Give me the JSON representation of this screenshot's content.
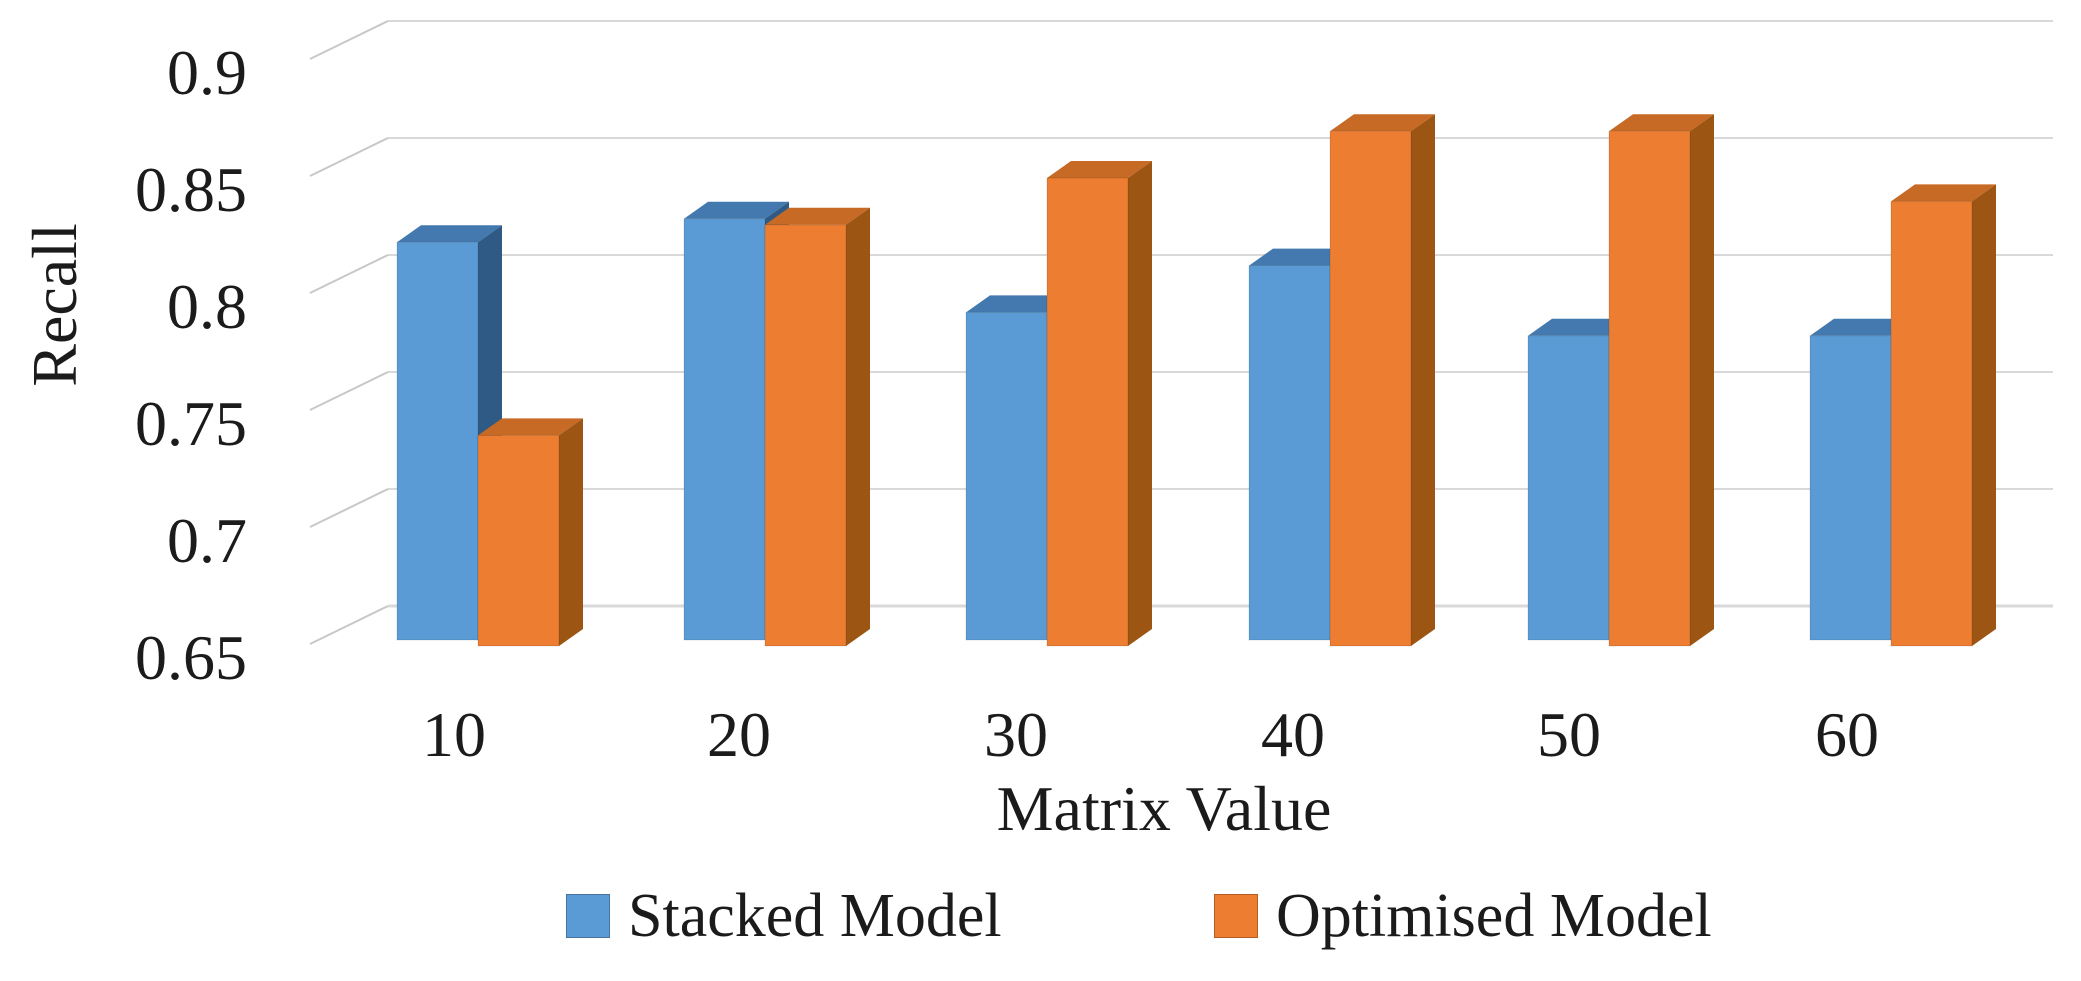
{
  "chart_data": {
    "type": "bar",
    "style": "3d-clustered-column",
    "categories": [
      "10",
      "20",
      "30",
      "40",
      "50",
      "60"
    ],
    "series": [
      {
        "name": "Stacked Model",
        "color": "#5B9BD5",
        "color_top": "#4379AE",
        "color_side": "#2E5A85",
        "values": [
          0.82,
          0.83,
          0.79,
          0.81,
          0.78,
          0.78
        ]
      },
      {
        "name": "Optimised Model",
        "color": "#ED7D31",
        "color_top": "#C66A25",
        "color_side": "#9C5513",
        "values": [
          0.74,
          0.83,
          0.85,
          0.87,
          0.87,
          0.84
        ]
      }
    ],
    "xlabel": "Matrix Value",
    "ylabel": "Recall",
    "ylim": [
      0.65,
      0.9
    ],
    "ytick_labels": [
      "0.65",
      "0.7",
      "0.75",
      "0.8",
      "0.85",
      "0.9"
    ],
    "grid": true,
    "legend_position": "bottom"
  },
  "colors": {
    "background": "#FFFFFF",
    "gridline": "#D9D9D9",
    "tick_line": "#C8C8C8",
    "text": "#1B1B1B"
  }
}
